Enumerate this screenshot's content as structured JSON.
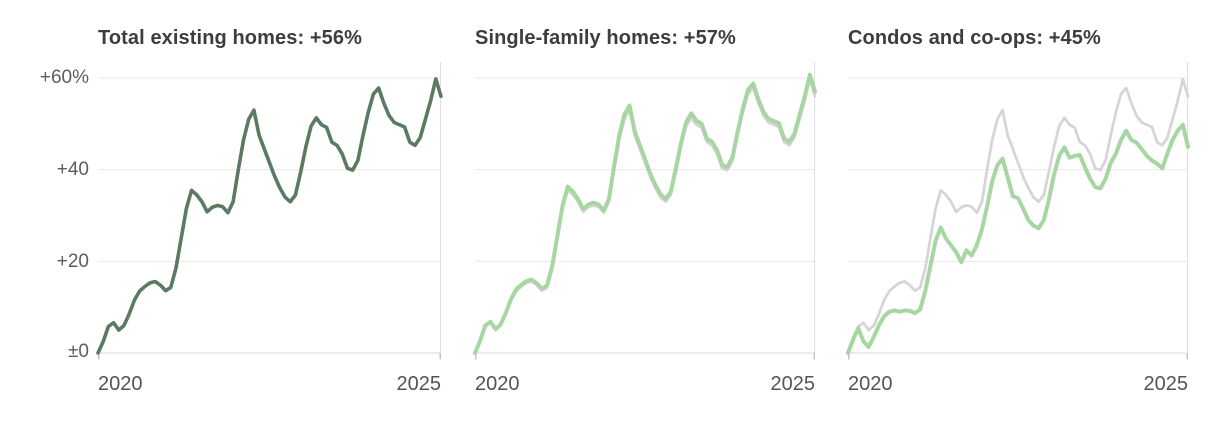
{
  "colors": {
    "emphasis_green": "#5a7a61",
    "light_green": "#a8d6a2",
    "reference_gray": "#d5d5d5",
    "gridline": "#eaeaea",
    "baseline": "#d9d9d9",
    "edge_line": "#e0e0e0",
    "tick": "#c5c5c5",
    "title_text": "#3d3d3d",
    "axis_text": "#5d5d5d"
  },
  "chart_data": [
    {
      "type": "line",
      "title": "Total existing homes: +56%",
      "headline_change_pct": 56,
      "x_axis": {
        "tick_labels": [
          "2020",
          "2025"
        ]
      },
      "y_axis": {
        "range": [
          0,
          60
        ],
        "tick_values": [
          0,
          20,
          40,
          60
        ],
        "tick_labels": [
          "+60%",
          "+40",
          "+20",
          "±0"
        ],
        "labels_visible": true
      },
      "grid": true,
      "legend": "none",
      "series": [
        {
          "name": "Total existing homes",
          "role": "emphasis",
          "color": "#5a7a61",
          "values": [
            0,
            2.5,
            5.8,
            6.6,
            5.0,
            6.0,
            8.5,
            11.5,
            13.5,
            14.5,
            15.3,
            15.6,
            14.8,
            13.6,
            14.3,
            18.5,
            25.0,
            31.5,
            35.5,
            34.5,
            33.0,
            30.8,
            31.8,
            32.2,
            31.9,
            30.6,
            33.0,
            40.0,
            46.5,
            51.0,
            53.0,
            47.5,
            44.5,
            41.5,
            38.5,
            36.0,
            34.0,
            33.0,
            34.5,
            39.5,
            45.0,
            49.5,
            51.3,
            49.8,
            49.2,
            46.0,
            45.3,
            43.4,
            40.3,
            39.9,
            42.0,
            47.5,
            52.5,
            56.5,
            57.8,
            54.5,
            51.8,
            50.3,
            49.8,
            49.3,
            46.0,
            45.3,
            47.0,
            51.0,
            55.0,
            59.8,
            56.0
          ]
        }
      ]
    },
    {
      "type": "line",
      "title": "Single-family homes: +57%",
      "headline_change_pct": 57,
      "x_axis": {
        "tick_labels": [
          "2020",
          "2025"
        ]
      },
      "y_axis": {
        "range": [
          0,
          60
        ],
        "tick_values": [
          0,
          20,
          40,
          60
        ],
        "labels_visible": false
      },
      "grid": true,
      "legend": "none",
      "series": [
        {
          "name": "Total existing homes (reference)",
          "role": "reference",
          "color": "#d5d5d5",
          "values": [
            0,
            2.5,
            5.8,
            6.6,
            5.0,
            6.0,
            8.5,
            11.5,
            13.5,
            14.5,
            15.3,
            15.6,
            14.8,
            13.6,
            14.3,
            18.5,
            25.0,
            31.5,
            35.5,
            34.5,
            33.0,
            30.8,
            31.8,
            32.2,
            31.9,
            30.6,
            33.0,
            40.0,
            46.5,
            51.0,
            53.0,
            47.5,
            44.5,
            41.5,
            38.5,
            36.0,
            34.0,
            33.0,
            34.5,
            39.5,
            45.0,
            49.5,
            51.3,
            49.8,
            49.2,
            46.0,
            45.3,
            43.4,
            40.3,
            39.9,
            42.0,
            47.5,
            52.5,
            56.5,
            57.8,
            54.5,
            51.8,
            50.3,
            49.8,
            49.3,
            46.0,
            45.3,
            47.0,
            51.0,
            55.0,
            59.8,
            56.0
          ]
        },
        {
          "name": "Single-family homes",
          "role": "main",
          "color": "#a8d6a2",
          "values": [
            0,
            2.7,
            6.0,
            6.8,
            5.2,
            6.3,
            8.8,
            11.8,
            13.9,
            14.9,
            15.7,
            16.0,
            15.2,
            14.0,
            14.8,
            19.0,
            25.6,
            32.2,
            36.3,
            35.2,
            33.6,
            31.4,
            32.4,
            32.8,
            32.4,
            31.1,
            33.6,
            40.8,
            47.4,
            52.0,
            54.0,
            48.4,
            45.3,
            42.3,
            39.2,
            36.7,
            34.7,
            33.6,
            35.2,
            40.3,
            45.9,
            50.4,
            52.3,
            50.7,
            50.0,
            46.8,
            46.1,
            44.2,
            41.0,
            40.6,
            42.8,
            48.4,
            53.4,
            57.4,
            58.8,
            55.4,
            52.6,
            51.1,
            50.6,
            50.1,
            46.8,
            46.1,
            47.8,
            51.9,
            56.0,
            60.7,
            57.0
          ]
        }
      ]
    },
    {
      "type": "line",
      "title": "Condos and co-ops: +45%",
      "headline_change_pct": 45,
      "x_axis": {
        "tick_labels": [
          "2020",
          "2025"
        ]
      },
      "y_axis": {
        "range": [
          0,
          60
        ],
        "tick_values": [
          0,
          20,
          40,
          60
        ],
        "labels_visible": false
      },
      "grid": true,
      "legend": "none",
      "series": [
        {
          "name": "Total existing homes (reference)",
          "role": "reference",
          "color": "#d5d5d5",
          "values": [
            0,
            2.5,
            5.8,
            6.6,
            5.0,
            6.0,
            8.5,
            11.5,
            13.5,
            14.5,
            15.3,
            15.6,
            14.8,
            13.6,
            14.3,
            18.5,
            25.0,
            31.5,
            35.5,
            34.5,
            33.0,
            30.8,
            31.8,
            32.2,
            31.9,
            30.6,
            33.0,
            40.0,
            46.5,
            51.0,
            53.0,
            47.5,
            44.5,
            41.5,
            38.5,
            36.0,
            34.0,
            33.0,
            34.5,
            39.5,
            45.0,
            49.5,
            51.3,
            49.8,
            49.2,
            46.0,
            45.3,
            43.4,
            40.3,
            39.9,
            42.0,
            47.5,
            52.5,
            56.5,
            57.8,
            54.5,
            51.8,
            50.3,
            49.8,
            49.3,
            46.0,
            45.3,
            47.0,
            51.0,
            55.0,
            59.8,
            56.0
          ]
        },
        {
          "name": "Condos and co-ops",
          "role": "main",
          "color": "#a8d6a2",
          "values": [
            0,
            3.0,
            5.4,
            2.5,
            1.3,
            3.5,
            6.0,
            8.0,
            9.0,
            9.3,
            9.0,
            9.3,
            9.2,
            8.7,
            9.5,
            13.5,
            19.0,
            24.5,
            27.4,
            25.0,
            23.5,
            22.0,
            19.8,
            22.4,
            21.3,
            23.5,
            27.0,
            32.0,
            37.5,
            41.0,
            42.4,
            38.3,
            34.2,
            33.8,
            31.5,
            29.0,
            27.8,
            27.2,
            29.0,
            33.5,
            39.0,
            43.0,
            44.9,
            42.6,
            43.0,
            43.2,
            40.5,
            38.0,
            36.2,
            35.9,
            38.0,
            41.5,
            43.5,
            46.5,
            48.5,
            46.5,
            45.9,
            44.5,
            43.0,
            42.0,
            41.3,
            40.3,
            43.5,
            46.5,
            48.5,
            49.8,
            45.0
          ]
        }
      ]
    }
  ]
}
